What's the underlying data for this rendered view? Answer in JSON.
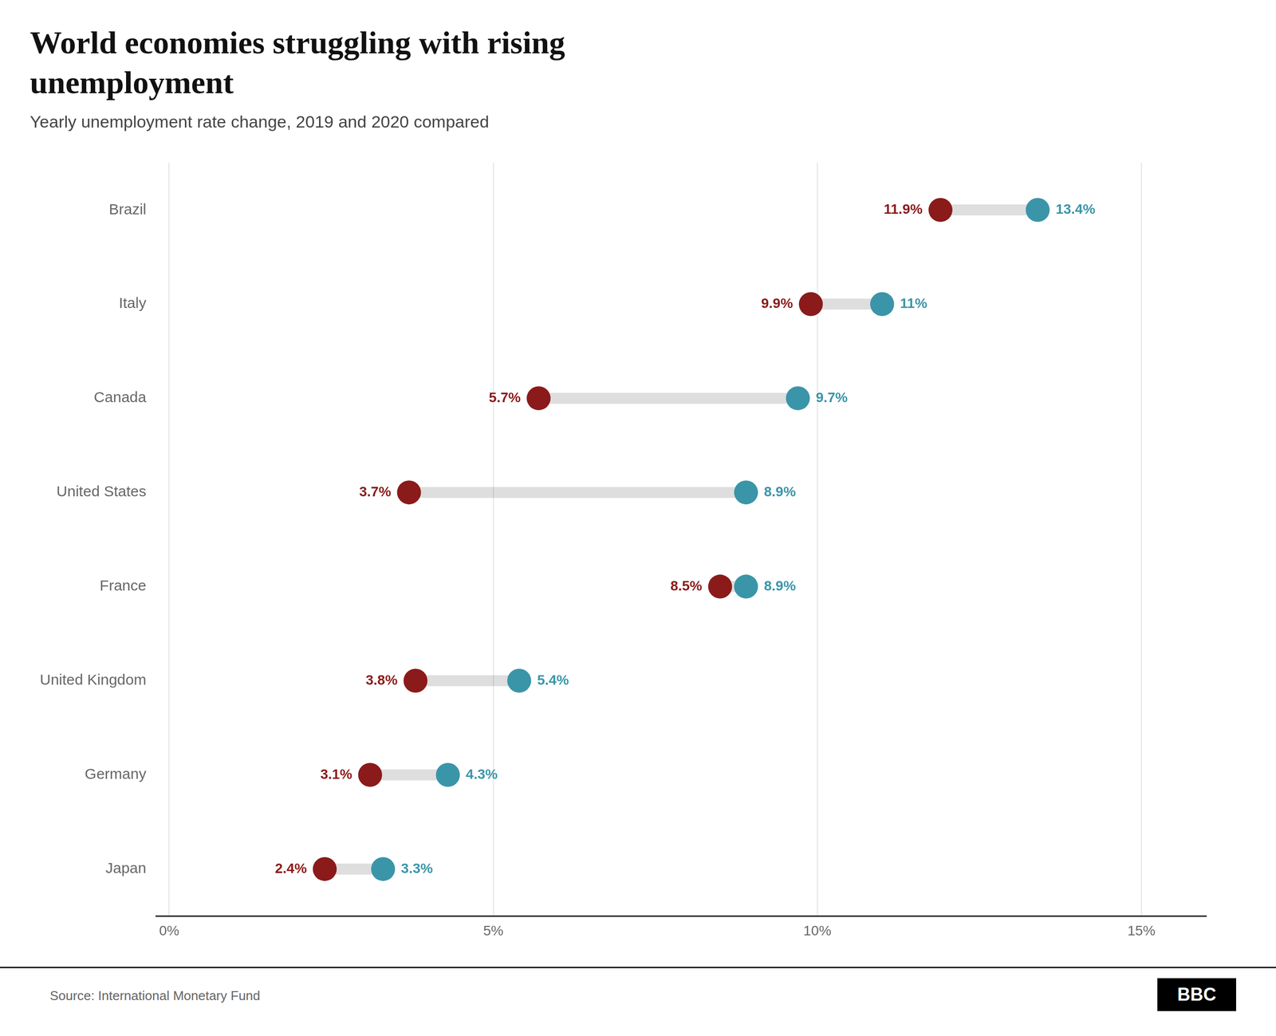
{
  "chart_data": {
    "type": "dumbbell",
    "title": [
      "World economies struggling with rising",
      "unemployment"
    ],
    "subtitle": "Yearly unemployment rate change, 2019 and 2020 compared",
    "categories": [
      "Brazil",
      "Italy",
      "Canada",
      "United States",
      "France",
      "United Kingdom",
      "Germany",
      "Japan"
    ],
    "series": [
      {
        "name": "2019",
        "color": "#8B1A1A",
        "values": [
          11.9,
          9.9,
          5.7,
          3.7,
          8.5,
          3.8,
          3.1,
          2.4
        ],
        "value_labels": [
          "11.9%",
          "9.9%",
          "5.7%",
          "3.7%",
          "8.5%",
          "3.8%",
          "3.1%",
          "2.4%"
        ]
      },
      {
        "name": "2020",
        "color": "#3A95A8",
        "values": [
          13.4,
          11.0,
          9.7,
          8.9,
          8.9,
          5.4,
          4.3,
          3.3
        ],
        "value_labels": [
          "13.4%",
          "11%",
          "9.7%",
          "8.9%",
          "8.9%",
          "5.4%",
          "4.3%",
          "3.3%"
        ]
      }
    ],
    "orientation": "horizontal",
    "xlim": [
      -0.2,
      16
    ],
    "xticks": [
      {
        "value": 0,
        "label": "0%"
      },
      {
        "value": 5,
        "label": "5%"
      },
      {
        "value": 10,
        "label": "10%"
      },
      {
        "value": 15,
        "label": "15%"
      }
    ],
    "grid": true,
    "data_labels": true,
    "annotations": [
      "Source: International Monetary Fund",
      "BBC"
    ]
  }
}
